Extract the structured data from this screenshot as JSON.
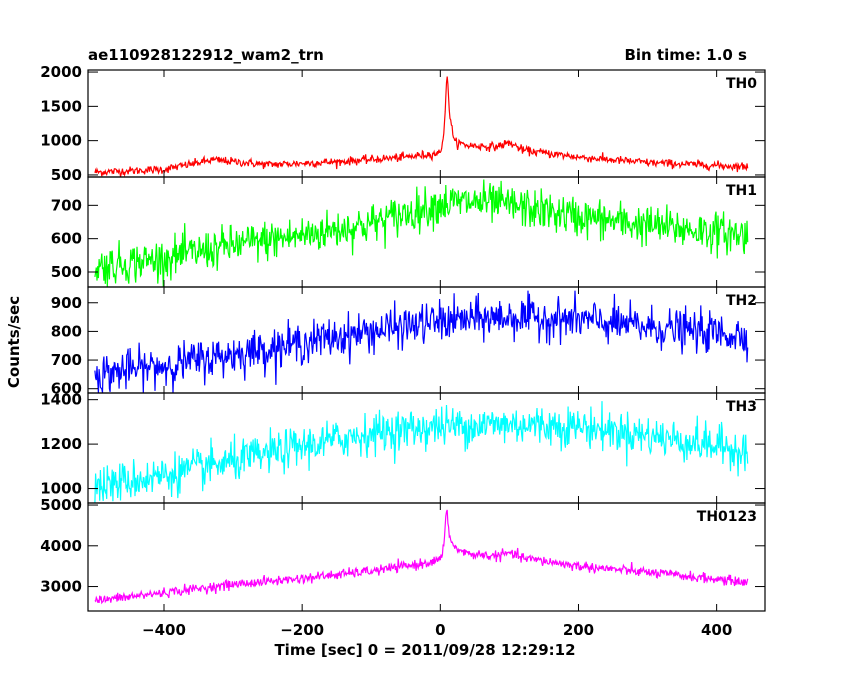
{
  "chart_data": {
    "type": "line",
    "title": "ae110928122912_wam2_trn",
    "bin_time_label": "Bin time: 1.0 s",
    "xlabel": "Time [sec] 0 = 2011/09/28 12:29:12",
    "ylabel": "Counts/sec",
    "xlim": [
      -510,
      470
    ],
    "x_ticks": [
      -400,
      -200,
      0,
      200,
      400
    ],
    "x_tick_labels": [
      "−400",
      "−200",
      "0",
      "200",
      "400"
    ],
    "grid": false,
    "legend": "none",
    "bin_time_s": 1.0,
    "x_data_range": [
      -500,
      445
    ],
    "panels": [
      {
        "name": "TH0",
        "color": "#ff0000",
        "ylim": [
          470,
          2030
        ],
        "y_ticks": [
          500,
          1000,
          1500,
          2000
        ],
        "y_tick_labels": [
          "500",
          "1000",
          "1500",
          "2000"
        ],
        "series_x": [
          -500,
          -400,
          -330,
          -250,
          -150,
          -50,
          0,
          5,
          8,
          10,
          13,
          20,
          40,
          80,
          100,
          120,
          200,
          300,
          445
        ],
        "series_y": [
          540,
          580,
          720,
          650,
          690,
          760,
          820,
          1100,
          1650,
          1940,
          1450,
          980,
          930,
          910,
          970,
          860,
          760,
          680,
          620
        ],
        "noise": 30
      },
      {
        "name": "TH1",
        "color": "#00ff00",
        "ylim": [
          455,
          785
        ],
        "y_ticks": [
          500,
          600,
          700
        ],
        "y_tick_labels": [
          "500",
          "600",
          "700"
        ],
        "series_x": [
          -500,
          -400,
          -300,
          -200,
          -100,
          0,
          50,
          100,
          200,
          300,
          445
        ],
        "series_y": [
          515,
          540,
          580,
          610,
          645,
          705,
          710,
          700,
          665,
          640,
          610
        ],
        "noise": 30
      },
      {
        "name": "TH2",
        "color": "#0000ff",
        "ylim": [
          585,
          955
        ],
        "y_ticks": [
          600,
          700,
          800,
          900
        ],
        "y_tick_labels": [
          "600",
          "700",
          "800",
          "900"
        ],
        "series_x": [
          -500,
          -400,
          -300,
          -200,
          -100,
          0,
          100,
          200,
          300,
          445
        ],
        "series_y": [
          650,
          680,
          720,
          760,
          800,
          835,
          850,
          840,
          815,
          785
        ],
        "noise": 35
      },
      {
        "name": "TH3",
        "color": "#00ffff",
        "ylim": [
          935,
          1430
        ],
        "y_ticks": [
          1000,
          1200,
          1400
        ],
        "y_tick_labels": [
          "1000",
          "1200",
          "1400"
        ],
        "series_x": [
          -500,
          -400,
          -300,
          -200,
          -100,
          0,
          100,
          200,
          300,
          445
        ],
        "series_y": [
          1010,
          1060,
          1120,
          1190,
          1250,
          1280,
          1290,
          1280,
          1240,
          1170
        ],
        "noise": 45
      },
      {
        "name": "TH0123",
        "color": "#ff00ff",
        "ylim": [
          2400,
          5050
        ],
        "y_ticks": [
          3000,
          4000,
          5000
        ],
        "y_tick_labels": [
          "3000",
          "4000",
          "5000"
        ],
        "series_x": [
          -500,
          -400,
          -300,
          -200,
          -100,
          -30,
          0,
          5,
          9,
          13,
          20,
          40,
          80,
          100,
          120,
          200,
          300,
          445
        ],
        "series_y": [
          2650,
          2850,
          3050,
          3200,
          3380,
          3550,
          3650,
          4000,
          4850,
          4300,
          3950,
          3800,
          3750,
          3820,
          3700,
          3500,
          3350,
          3100
        ],
        "noise": 60
      }
    ]
  }
}
